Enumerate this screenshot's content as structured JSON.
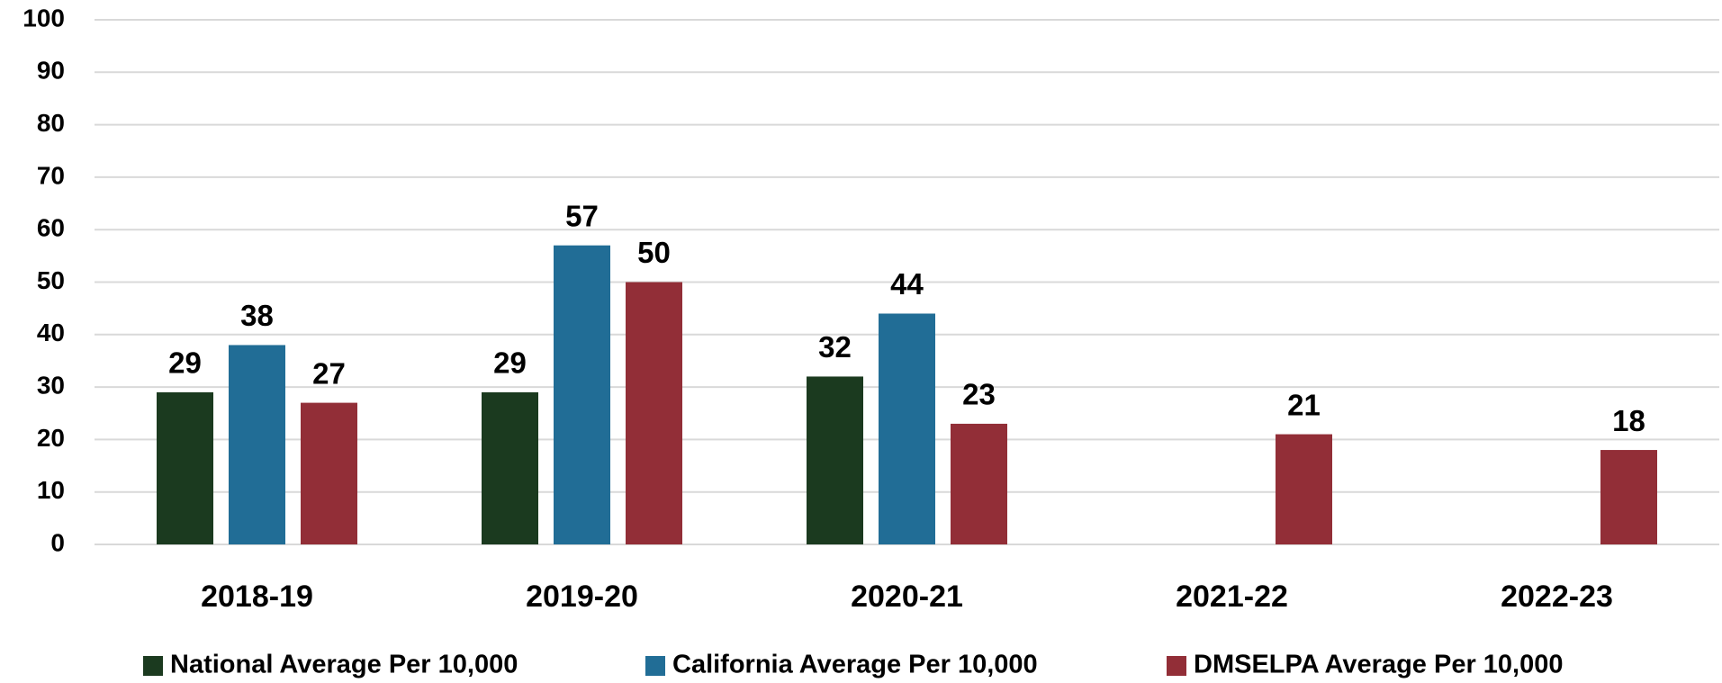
{
  "chart_data": {
    "type": "bar",
    "categories": [
      "2018-19",
      "2019-20",
      "2020-21",
      "2021-22",
      "2022-23"
    ],
    "series": [
      {
        "name": "National Average Per 10,000",
        "color": "#1b3a1f",
        "values": [
          29,
          29,
          32,
          null,
          null
        ]
      },
      {
        "name": "California Average Per 10,000",
        "color": "#216d96",
        "values": [
          38,
          57,
          44,
          null,
          null
        ]
      },
      {
        "name": "DMSELPA Average Per 10,000",
        "color": "#922e37",
        "values": [
          27,
          50,
          23,
          21,
          18
        ]
      }
    ],
    "ylim": [
      0,
      100
    ],
    "yticks": [
      0,
      10,
      20,
      30,
      40,
      50,
      60,
      70,
      80,
      90,
      100
    ],
    "grid": true,
    "legend": "bottom"
  }
}
